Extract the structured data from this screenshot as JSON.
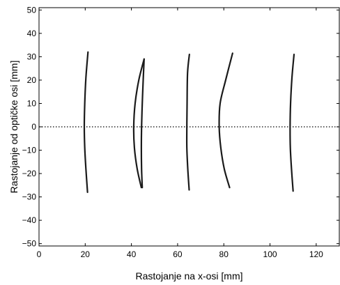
{
  "chart_data": {
    "type": "line",
    "title": "",
    "xlabel": "Rastojanje na x-osi [mm]",
    "ylabel": "Rastojanje od optičke osi [mm]",
    "xlim": [
      0,
      130
    ],
    "ylim": [
      -51,
      51
    ],
    "xticks": [
      0,
      20,
      40,
      60,
      80,
      100,
      120
    ],
    "yticks": [
      -50,
      -40,
      -30,
      -20,
      -10,
      0,
      10,
      20,
      30,
      40,
      50
    ],
    "ytick_labels": [
      "−50",
      "−40",
      "−30",
      "−20",
      "−10",
      "0",
      "10",
      "20",
      "30",
      "40",
      "50"
    ],
    "grid": false,
    "legend": "none",
    "line_color": "#1a1a1a",
    "reference_line": {
      "y": 0,
      "style": "dotted",
      "color": "#000000"
    },
    "series": [
      {
        "x": [
          21.0,
          20.3,
          19.8,
          19.6,
          19.8,
          20.3,
          21.2
        ],
        "y": [
          -28,
          -18,
          -9,
          0,
          10,
          21,
          32
        ]
      },
      {
        "x": [
          44.3,
          42.5,
          41.3,
          41.0,
          41.6,
          43.2,
          45.5
        ],
        "y": [
          -26,
          -18,
          -9,
          0,
          10,
          20,
          29
        ]
      },
      {
        "x": [
          44.7,
          44.4,
          44.3,
          44.4,
          44.7,
          45.1,
          45.5
        ],
        "y": [
          -26,
          -18,
          -9,
          0,
          10,
          20,
          29
        ]
      },
      {
        "x": [
          65.0,
          64.4,
          64.0,
          64.0,
          64.1,
          64.3,
          65.1
        ],
        "y": [
          -27,
          -18,
          -9,
          0,
          10,
          23,
          31
        ]
      },
      {
        "x": [
          82.5,
          80.2,
          78.7,
          78.0,
          78.4,
          80.8,
          83.8
        ],
        "y": [
          -26,
          -18,
          -9,
          0,
          10,
          20,
          31.5
        ]
      },
      {
        "x": [
          110.0,
          109.3,
          108.8,
          108.7,
          108.9,
          109.5,
          110.4
        ],
        "y": [
          -27.5,
          -18,
          -9,
          0,
          10,
          21,
          31
        ]
      }
    ]
  }
}
